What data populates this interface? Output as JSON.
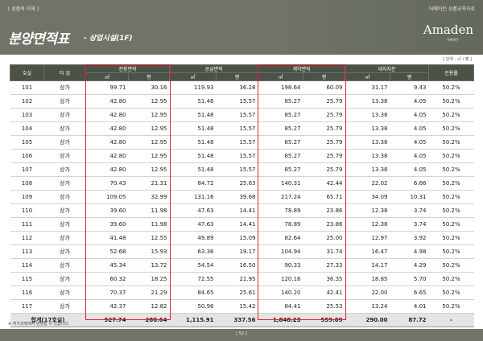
{
  "header": {
    "tag": "[ 상품의 이해 ]",
    "corner": "어메이든 상품교육자료",
    "title": "분양면적표",
    "subtitle": "- 상업시설(1F)",
    "logo": "Amaden",
    "logo_sub": "아메이든"
  },
  "unit": "[ 단위 : ㎡ / 평 ]",
  "columns": {
    "unit": "호실",
    "type": "타 입",
    "exclusive": "전용면적",
    "supply": "공급면적",
    "contract": "계약면적",
    "land": "대지지분",
    "ratio": "전용률",
    "sqm": "㎡",
    "pyeong": "평"
  },
  "rows": [
    {
      "unit": "101",
      "type": "상가",
      "ex_m": "99.71",
      "ex_p": "30.16",
      "su_m": "119.93",
      "su_p": "36.28",
      "co_m": "198.64",
      "co_p": "60.09",
      "la_m": "31.17",
      "la_p": "9.43",
      "ratio": "50.2%"
    },
    {
      "unit": "102",
      "type": "상가",
      "ex_m": "42.80",
      "ex_p": "12.95",
      "su_m": "51.48",
      "su_p": "15.57",
      "co_m": "85.27",
      "co_p": "25.79",
      "la_m": "13.38",
      "la_p": "4.05",
      "ratio": "50.2%"
    },
    {
      "unit": "103",
      "type": "상가",
      "ex_m": "42.80",
      "ex_p": "12.95",
      "su_m": "51.48",
      "su_p": "15.57",
      "co_m": "85.27",
      "co_p": "25.79",
      "la_m": "13.38",
      "la_p": "4.05",
      "ratio": "50.2%"
    },
    {
      "unit": "104",
      "type": "상가",
      "ex_m": "42.80",
      "ex_p": "12.95",
      "su_m": "51.48",
      "su_p": "15.57",
      "co_m": "85.27",
      "co_p": "25.79",
      "la_m": "13.38",
      "la_p": "4.05",
      "ratio": "50.2%"
    },
    {
      "unit": "105",
      "type": "상가",
      "ex_m": "42.80",
      "ex_p": "12.95",
      "su_m": "51.48",
      "su_p": "15.57",
      "co_m": "85.27",
      "co_p": "25.79",
      "la_m": "13.38",
      "la_p": "4.05",
      "ratio": "50.2%"
    },
    {
      "unit": "106",
      "type": "상가",
      "ex_m": "42.80",
      "ex_p": "12.95",
      "su_m": "51.48",
      "su_p": "15.57",
      "co_m": "85.27",
      "co_p": "25.79",
      "la_m": "13.38",
      "la_p": "4.05",
      "ratio": "50.2%"
    },
    {
      "unit": "107",
      "type": "상가",
      "ex_m": "42.80",
      "ex_p": "12.95",
      "su_m": "51.48",
      "su_p": "15.57",
      "co_m": "85.27",
      "co_p": "25.79",
      "la_m": "13.38",
      "la_p": "4.05",
      "ratio": "50.2%"
    },
    {
      "unit": "108",
      "type": "상가",
      "ex_m": "70.43",
      "ex_p": "21.31",
      "su_m": "84.72",
      "su_p": "25.63",
      "co_m": "140.31",
      "co_p": "42.44",
      "la_m": "22.02",
      "la_p": "6.66",
      "ratio": "50.2%"
    },
    {
      "unit": "109",
      "type": "상가",
      "ex_m": "109.05",
      "ex_p": "32.99",
      "su_m": "131.16",
      "su_p": "39.68",
      "co_m": "217.24",
      "co_p": "65.71",
      "la_m": "34.09",
      "la_p": "10.31",
      "ratio": "50.2%"
    },
    {
      "unit": "110",
      "type": "상가",
      "ex_m": "39.60",
      "ex_p": "11.98",
      "su_m": "47.63",
      "su_p": "14.41",
      "co_m": "78.89",
      "co_p": "23.86",
      "la_m": "12.38",
      "la_p": "3.74",
      "ratio": "50.2%"
    },
    {
      "unit": "111",
      "type": "상가",
      "ex_m": "39.60",
      "ex_p": "11.98",
      "su_m": "47.63",
      "su_p": "14.41",
      "co_m": "78.89",
      "co_p": "23.86",
      "la_m": "12.38",
      "la_p": "3.74",
      "ratio": "50.2%"
    },
    {
      "unit": "112",
      "type": "상가",
      "ex_m": "41.48",
      "ex_p": "12.55",
      "su_m": "49.89",
      "su_p": "15.09",
      "co_m": "82.64",
      "co_p": "25.00",
      "la_m": "12.97",
      "la_p": "3.92",
      "ratio": "50.2%"
    },
    {
      "unit": "113",
      "type": "상가",
      "ex_m": "52.68",
      "ex_p": "15.93",
      "su_m": "63.36",
      "su_p": "19.17",
      "co_m": "104.94",
      "co_p": "31.74",
      "la_m": "16.47",
      "la_p": "4.98",
      "ratio": "50.2%"
    },
    {
      "unit": "114",
      "type": "상가",
      "ex_m": "45.34",
      "ex_p": "13.72",
      "su_m": "54.54",
      "su_p": "16.50",
      "co_m": "90.33",
      "co_p": "27.33",
      "la_m": "14.17",
      "la_p": "4.29",
      "ratio": "50.2%"
    },
    {
      "unit": "115",
      "type": "상가",
      "ex_m": "60.32",
      "ex_p": "18.25",
      "su_m": "72.55",
      "su_p": "21.95",
      "co_m": "120.16",
      "co_p": "36.35",
      "la_m": "18.85",
      "la_p": "5.70",
      "ratio": "50.2%"
    },
    {
      "unit": "116",
      "type": "상가",
      "ex_m": "70.37",
      "ex_p": "21.29",
      "su_m": "84.65",
      "su_p": "25.61",
      "co_m": "140.20",
      "co_p": "42.41",
      "la_m": "22.00",
      "la_p": "6.65",
      "ratio": "50.2%"
    },
    {
      "unit": "117",
      "type": "상가",
      "ex_m": "42.37",
      "ex_p": "12.82",
      "su_m": "50.96",
      "su_p": "15.42",
      "co_m": "84.41",
      "co_p": "25.53",
      "la_m": "13.24",
      "la_p": "4.01",
      "ratio": "50.2%"
    }
  ],
  "total": {
    "label": "합계(17호실)",
    "ex_m": "927.74",
    "ex_p": "280.64",
    "su_m": "1,115.91",
    "su_p": "337.56",
    "co_m": "1,848.23",
    "co_p": "559.09",
    "la_m": "290.00",
    "la_p": "87.72",
    "ratio": "-"
  },
  "note": "※ 허가과정에서 변경될 수 있습니다.",
  "page": "[ 52 ]",
  "colors": {
    "header_bg": "#6f7467",
    "table_head": "#4c5248",
    "highlight": "#e0202a"
  }
}
